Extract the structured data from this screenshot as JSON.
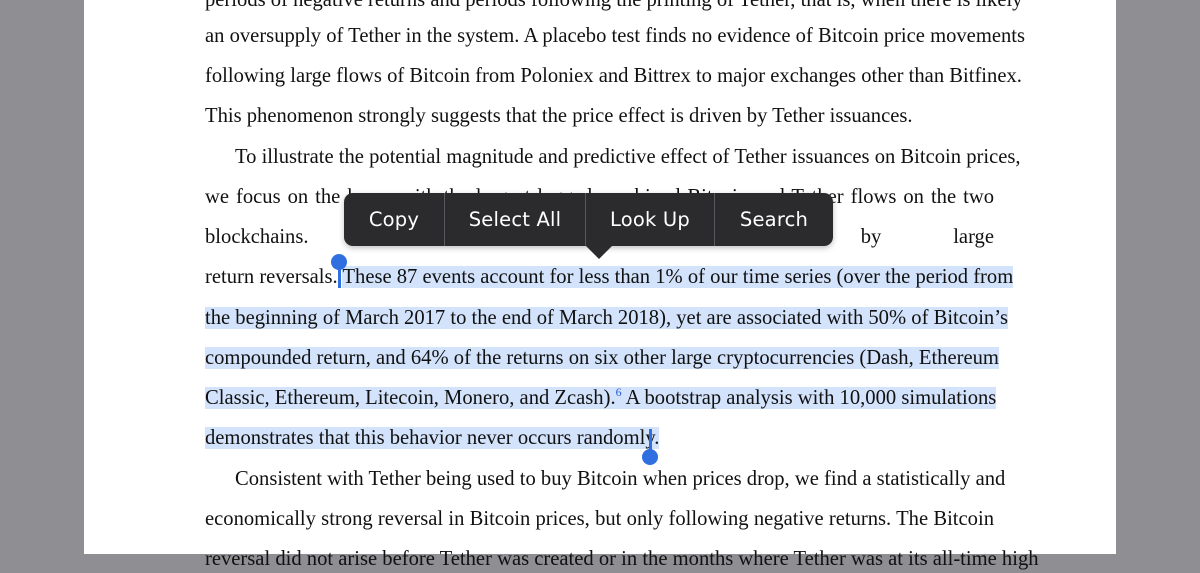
{
  "document": {
    "lines": [
      "periods of negative returns and periods following the printing of Tether, that is, when there is likely",
      "an oversupply of Tether in the system.  A placebo test finds no evidence of Bitcoin price movements",
      "following large flows of Bitcoin from Poloniex and Bittrex to major exchanges other than Bitfinex.",
      "This phenomenon strongly suggests that the price effect is driven by Tether issuances.",
      "To illustrate the potential magnitude and predictive effect of Tether issuances on Bitcoin prices,",
      "we focus on the hours with the largest lagged combined Bitcoin and Tether flows on the two",
      "blockchains. These hours are followed by large"
    ],
    "line7_pre": "return reversals. ",
    "line7_sel": "These 87 events account for less than 1% of our time series (over the period from",
    "line8": "the beginning of March 2017 to the end of March 2018), yet are associated with 50% of Bitcoin’s",
    "line9": "compounded return, and 64% of the returns on six other large cryptocurrencies (Dash, Ethereum",
    "line10_a": "Classic, Ethereum, Litecoin, Monero, and Zcash).",
    "line10_fn": "6",
    "line10_b": "  A bootstrap analysis with 10,000 simulations",
    "line11": "demonstrates that this behavior never occurs randomly.",
    "line12": "Consistent with Tether being used to buy Bitcoin when prices drop, we find a statistically and",
    "line13": "economically strong reversal in Bitcoin prices, but only following negative returns.  The Bitcoin",
    "line14": "reversal did not arise before Tether was created or in the months where Tether was at its all-time high"
  },
  "menu": {
    "copy": "Copy",
    "select_all": "Select All",
    "look_up": "Look Up",
    "search": "Search"
  },
  "colors": {
    "selection": "#d3e3fb",
    "handle": "#2f6fdf",
    "menu_bg": "#2b2b2d"
  }
}
